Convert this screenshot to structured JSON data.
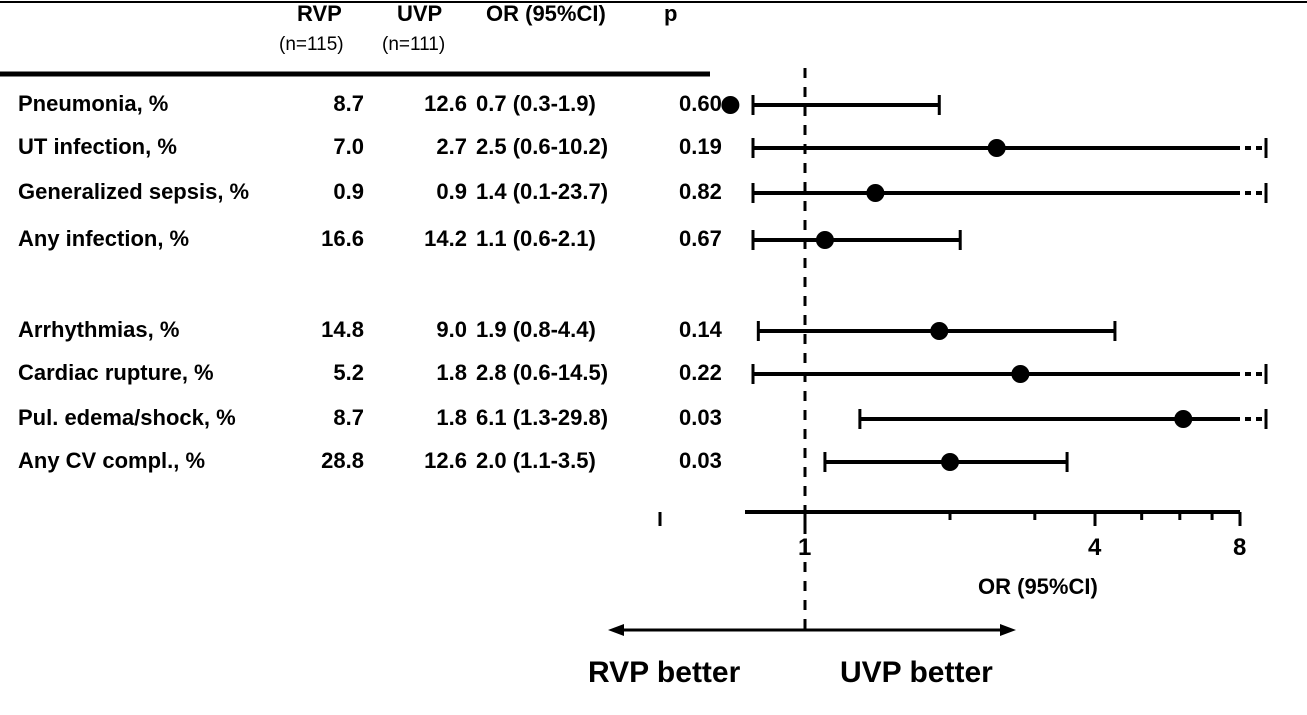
{
  "table": {
    "col_headers": {
      "rvp": "RVP",
      "rvp_n": "(n=115)",
      "uvp": "UVP",
      "uvp_n": "(n=111)",
      "or": "OR (95%CI)",
      "p": "p"
    }
  },
  "chart_data": {
    "type": "forest",
    "x_axis": {
      "label": "OR (95%CI)",
      "scale": "log2",
      "tick_labels": [
        "1",
        "4",
        "8"
      ],
      "range": [
        0.5,
        9
      ],
      "reference_line": 1,
      "arrow_left_label": "RVP better",
      "arrow_right_label": "UVP better"
    },
    "rows": [
      {
        "label": "Pneumonia, %",
        "rvp": "8.7",
        "uvp": "12.6",
        "or_text": "0.7 (0.3-1.9)",
        "p": "0.60",
        "or": 0.7,
        "lo": 0.3,
        "hi": 1.9,
        "truncated": false
      },
      {
        "label": "UT infection, %",
        "rvp": "7.0",
        "uvp": "2.7",
        "or_text": "2.5 (0.6-10.2)",
        "p": "0.19",
        "or": 2.5,
        "lo": 0.6,
        "hi": 10.2,
        "truncated": true
      },
      {
        "label": "Generalized sepsis, %",
        "rvp": "0.9",
        "uvp": "0.9",
        "or_text": "1.4 (0.1-23.7)",
        "p": "0.82",
        "or": 1.4,
        "lo": 0.1,
        "hi": 23.7,
        "truncated": true
      },
      {
        "label": "Any infection, %",
        "rvp": "16.6",
        "uvp": "14.2",
        "or_text": "1.1 (0.6-2.1)",
        "p": "0.67",
        "or": 1.1,
        "lo": 0.6,
        "hi": 2.1,
        "truncated": false
      },
      {
        "label": "Arrhythmias, %",
        "rvp": "14.8",
        "uvp": "9.0",
        "or_text": "1.9 (0.8-4.4)",
        "p": "0.14",
        "or": 1.9,
        "lo": 0.8,
        "hi": 4.4,
        "truncated": false
      },
      {
        "label": "Cardiac rupture, %",
        "rvp": "5.2",
        "uvp": "1.8",
        "or_text": "2.8 (0.6-14.5)",
        "p": "0.22",
        "or": 2.8,
        "lo": 0.6,
        "hi": 14.5,
        "truncated": true
      },
      {
        "label": "Pul. edema/shock, %",
        "rvp": "8.7",
        "uvp": "1.8",
        "or_text": "6.1 (1.3-29.8)",
        "p": "0.03",
        "or": 6.1,
        "lo": 1.3,
        "hi": 29.8,
        "truncated": true
      },
      {
        "label": "Any CV compl., %",
        "rvp": "28.8",
        "uvp": "12.6",
        "or_text": "2.0 (1.1-3.5)",
        "p": "0.03",
        "or": 2.0,
        "lo": 1.1,
        "hi": 3.5,
        "truncated": false
      }
    ]
  }
}
